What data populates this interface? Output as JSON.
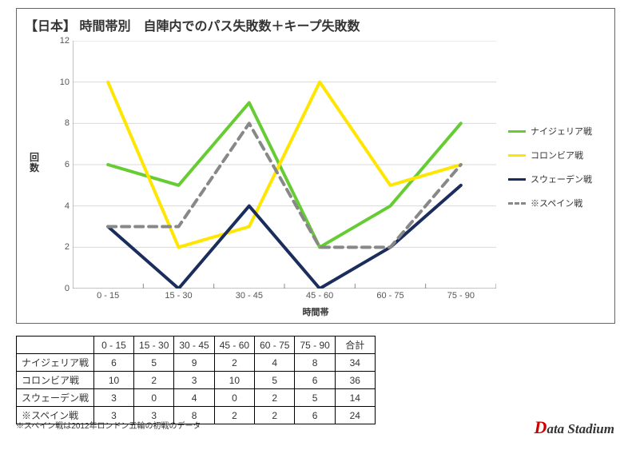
{
  "chart": {
    "title": "【日本】 時間帯別　自陣内でのパス失敗数＋キープ失敗数",
    "type": "line",
    "y_label": "回数",
    "x_label": "時間帯",
    "ylim": [
      0,
      12
    ],
    "ytick_step": 2,
    "y_ticks": [
      0,
      2,
      4,
      6,
      8,
      10,
      12
    ],
    "categories": [
      "0 - 15",
      "15 - 30",
      "30 - 45",
      "45 - 60",
      "60 - 75",
      "75 - 90"
    ],
    "background_color": "#ffffff",
    "grid_color": "#d9d9d9",
    "border_color": "#666666",
    "axis_text_color": "#555555",
    "title_fontsize": 16,
    "label_fontsize": 11,
    "line_width": 4,
    "series": [
      {
        "key": "nigeria",
        "name": "ナイジェリア戦",
        "color": "#66cc33",
        "dash": "solid",
        "values": [
          6,
          5,
          9,
          2,
          4,
          8
        ]
      },
      {
        "key": "colombia",
        "name": "コロンビア戦",
        "color": "#ffe600",
        "dash": "solid",
        "values": [
          10,
          2,
          3,
          10,
          5,
          6
        ]
      },
      {
        "key": "sweden",
        "name": "スウェーデン戦",
        "color": "#1a2d5c",
        "dash": "solid",
        "values": [
          3,
          0,
          4,
          0,
          2,
          5
        ]
      },
      {
        "key": "spain",
        "name": "※スペイン戦",
        "color": "#888888",
        "dash": "dashed",
        "values": [
          3,
          3,
          8,
          2,
          2,
          6
        ]
      }
    ]
  },
  "table": {
    "columns": [
      "",
      "0 - 15",
      "15 - 30",
      "30 - 45",
      "45 - 60",
      "60 - 75",
      "75 - 90",
      "合計"
    ],
    "rows": [
      {
        "label": "ナイジェリア戦",
        "cells": [
          6,
          5,
          9,
          2,
          4,
          8,
          34
        ]
      },
      {
        "label": "コロンビア戦",
        "cells": [
          10,
          2,
          3,
          10,
          5,
          6,
          36
        ]
      },
      {
        "label": "スウェーデン戦",
        "cells": [
          3,
          0,
          4,
          0,
          2,
          5,
          14
        ]
      },
      {
        "label": "※スペイン戦",
        "cells": [
          3,
          3,
          8,
          2,
          2,
          6,
          24
        ]
      }
    ]
  },
  "footnote": "※スペイン戦は2012年ロンドン五輪の初戦のデータ",
  "logo": {
    "accent": "D",
    "rest": "ata Stadium"
  }
}
